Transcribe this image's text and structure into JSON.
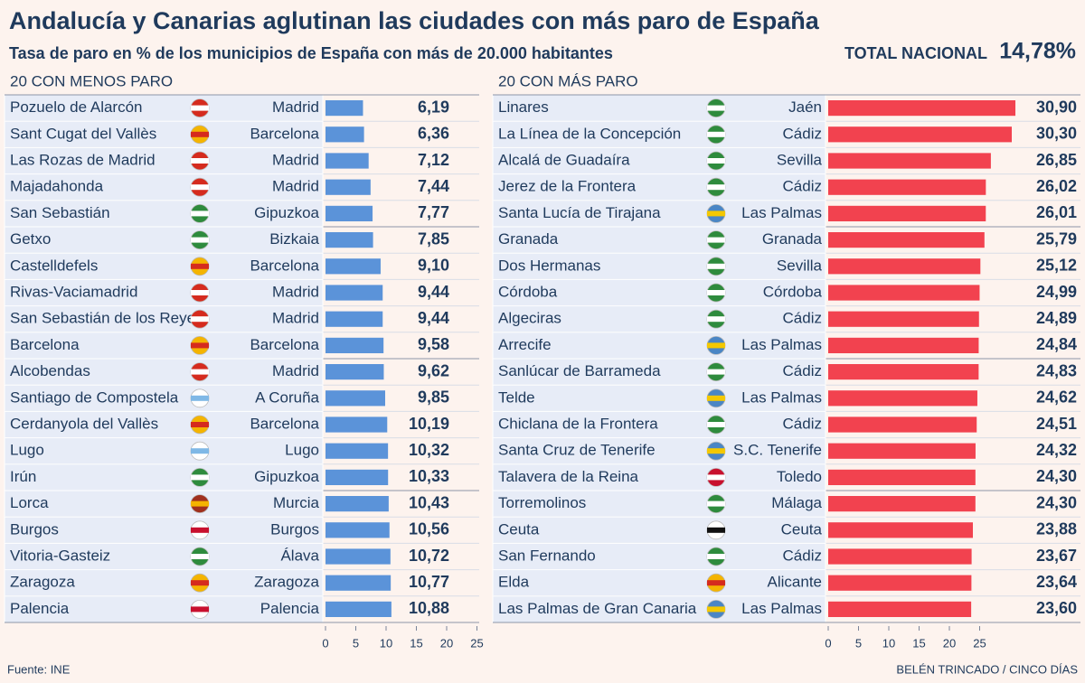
{
  "title": "Andalucía y Canarias aglutinan las ciudades con más paro de España",
  "subtitle": "Tasa de paro en % de los municipios de España con más de 20.000 habitantes",
  "national_total": {
    "label": "TOTAL NACIONAL",
    "value": 14.78,
    "value_label": "14,78%"
  },
  "source": "Fuente: INE",
  "credit": "BELÉN TRINCADO / CINCO DÍAS",
  "chart_data": [
    {
      "type": "bar",
      "title": "20 CON MENOS PARO",
      "color": "#5b93d9",
      "categories": [
        "Pozuelo de Alarcón",
        "Sant Cugat del Vallès",
        "Las Rozas de Madrid",
        "Majadahonda",
        "San Sebastián",
        "Getxo",
        "Castelldefels",
        "Rivas-Vaciamadrid",
        "San Sebastián de los Reyes",
        "Barcelona",
        "Alcobendas",
        "Santiago de Compostela",
        "Cerdanyola del Vallès",
        "Lugo",
        "Irún",
        "Lorca",
        "Burgos",
        "Vitoria-Gasteiz",
        "Zaragoza",
        "Palencia"
      ],
      "provinces": [
        "Madrid",
        "Barcelona",
        "Madrid",
        "Madrid",
        "Gipuzkoa",
        "Bizkaia",
        "Barcelona",
        "Madrid",
        "Madrid",
        "Barcelona",
        "Madrid",
        "A Coruña",
        "Barcelona",
        "Lugo",
        "Gipuzkoa",
        "Murcia",
        "Burgos",
        "Álava",
        "Zaragoza",
        "Palencia"
      ],
      "flag_colors": [
        [
          "#d52b1e",
          "#ffffff"
        ],
        [
          "#f4b400",
          "#d52b1e"
        ],
        [
          "#d52b1e",
          "#ffffff"
        ],
        [
          "#d52b1e",
          "#ffffff"
        ],
        [
          "#2e8b3d",
          "#ffffff"
        ],
        [
          "#2e8b3d",
          "#ffffff"
        ],
        [
          "#f4b400",
          "#d52b1e"
        ],
        [
          "#d52b1e",
          "#ffffff"
        ],
        [
          "#d52b1e",
          "#ffffff"
        ],
        [
          "#f4b400",
          "#d52b1e"
        ],
        [
          "#d52b1e",
          "#ffffff"
        ],
        [
          "#ffffff",
          "#7fb8e6"
        ],
        [
          "#f4b400",
          "#d52b1e"
        ],
        [
          "#ffffff",
          "#7fb8e6"
        ],
        [
          "#2e8b3d",
          "#ffffff"
        ],
        [
          "#a0301e",
          "#f4b400"
        ],
        [
          "#ffffff",
          "#c8102e"
        ],
        [
          "#2e8b3d",
          "#ffffff"
        ],
        [
          "#f4b400",
          "#d52b1e"
        ],
        [
          "#ffffff",
          "#c8102e"
        ]
      ],
      "values": [
        6.19,
        6.36,
        7.12,
        7.44,
        7.77,
        7.85,
        9.1,
        9.44,
        9.44,
        9.58,
        9.62,
        9.85,
        10.19,
        10.32,
        10.33,
        10.43,
        10.56,
        10.72,
        10.77,
        10.88
      ],
      "value_labels": [
        "6,19",
        "6,36",
        "7,12",
        "7,44",
        "7,77",
        "7,85",
        "9,10",
        "9,44",
        "9,44",
        "9,58",
        "9,62",
        "9,85",
        "10,19",
        "10,32",
        "10,33",
        "10,43",
        "10,56",
        "10,72",
        "10,77",
        "10,88"
      ],
      "xlim": [
        0,
        25
      ],
      "xticks": [
        0,
        5,
        10,
        15,
        20,
        25
      ]
    },
    {
      "type": "bar",
      "title": "20 CON MÁS PARO",
      "color": "#f2424f",
      "categories": [
        "Linares",
        "La Línea de la Concepción",
        "Alcalá de Guadaíra",
        "Jerez de la Frontera",
        "Santa Lucía de Tirajana",
        "Granada",
        "Dos Hermanas",
        "Córdoba",
        "Algeciras",
        "Arrecife",
        "Sanlúcar de Barrameda",
        "Telde",
        "Chiclana de la Frontera",
        "Santa Cruz de Tenerife",
        "Talavera de la Reina",
        "Torremolinos",
        "Ceuta",
        "San Fernando",
        "Elda",
        "Las Palmas de Gran Canaria"
      ],
      "provinces": [
        "Jaén",
        "Cádiz",
        "Sevilla",
        "Cádiz",
        "Las Palmas",
        "Granada",
        "Sevilla",
        "Córdoba",
        "Cádiz",
        "Las Palmas",
        "Cádiz",
        "Las Palmas",
        "Cádiz",
        "S.C. Tenerife",
        "Toledo",
        "Málaga",
        "Ceuta",
        "Cádiz",
        "Alicante",
        "Las Palmas"
      ],
      "flag_colors": [
        [
          "#2e8b3d",
          "#ffffff"
        ],
        [
          "#2e8b3d",
          "#ffffff"
        ],
        [
          "#2e8b3d",
          "#ffffff"
        ],
        [
          "#2e8b3d",
          "#ffffff"
        ],
        [
          "#4a86c5",
          "#f4c800"
        ],
        [
          "#2e8b3d",
          "#ffffff"
        ],
        [
          "#2e8b3d",
          "#ffffff"
        ],
        [
          "#2e8b3d",
          "#ffffff"
        ],
        [
          "#2e8b3d",
          "#ffffff"
        ],
        [
          "#4a86c5",
          "#f4c800"
        ],
        [
          "#2e8b3d",
          "#ffffff"
        ],
        [
          "#4a86c5",
          "#f4c800"
        ],
        [
          "#2e8b3d",
          "#ffffff"
        ],
        [
          "#4a86c5",
          "#f4c800"
        ],
        [
          "#c8102e",
          "#ffffff"
        ],
        [
          "#2e8b3d",
          "#ffffff"
        ],
        [
          "#ffffff",
          "#111111"
        ],
        [
          "#2e8b3d",
          "#ffffff"
        ],
        [
          "#f4b400",
          "#d52b1e"
        ],
        [
          "#4a86c5",
          "#f4c800"
        ]
      ],
      "values": [
        30.9,
        30.3,
        26.85,
        26.02,
        26.01,
        25.79,
        25.12,
        24.99,
        24.89,
        24.84,
        24.83,
        24.62,
        24.51,
        24.32,
        24.3,
        24.3,
        23.88,
        23.67,
        23.64,
        23.6
      ],
      "value_labels": [
        "30,90",
        "30,30",
        "26,85",
        "26,02",
        "26,01",
        "25,79",
        "25,12",
        "24,99",
        "24,89",
        "24,84",
        "24,83",
        "24,62",
        "24,51",
        "24,32",
        "24,30",
        "24,30",
        "23,88",
        "23,67",
        "23,64",
        "23,60"
      ],
      "xlim": [
        0,
        25
      ],
      "xticks": [
        0,
        5,
        10,
        15,
        20,
        25
      ]
    }
  ]
}
